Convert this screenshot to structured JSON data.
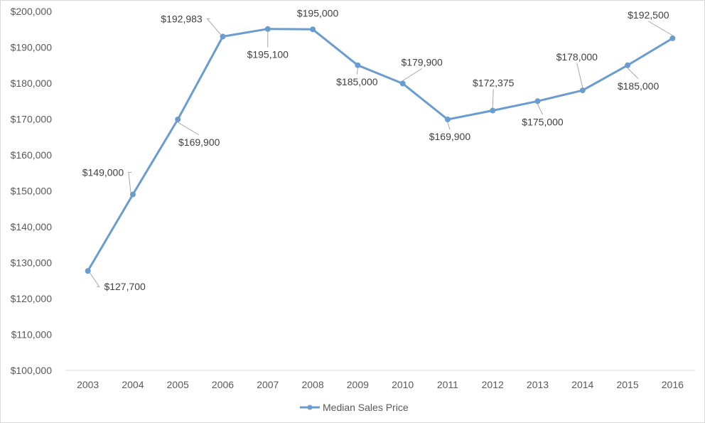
{
  "chart_data": {
    "type": "line",
    "title": "",
    "xlabel": "",
    "ylabel": "",
    "categories": [
      "2003",
      "2004",
      "2005",
      "2006",
      "2007",
      "2008",
      "2009",
      "2010",
      "2011",
      "2012",
      "2013",
      "2014",
      "2015",
      "2016"
    ],
    "series": [
      {
        "name": "Median Sales Price",
        "values": [
          127700,
          149000,
          169900,
          192983,
          195100,
          195000,
          185000,
          179900,
          169900,
          172375,
          175000,
          178000,
          185000,
          192500
        ],
        "data_labels": [
          "$127,700",
          "$149,000",
          "$169,900",
          "$192,983",
          "$195,100",
          "$195,000",
          "$185,000",
          "$179,900",
          "$169,900",
          "$172,375",
          "$175,000",
          "$178,000",
          "$185,000",
          "$192,500"
        ],
        "color": "#6a9ccf"
      }
    ],
    "ylim": [
      100000,
      200000
    ],
    "yticks": [
      100000,
      110000,
      120000,
      130000,
      140000,
      150000,
      160000,
      170000,
      180000,
      190000,
      200000
    ],
    "ytick_labels": [
      "$100,000",
      "$110,000",
      "$120,000",
      "$130,000",
      "$140,000",
      "$150,000",
      "$160,000",
      "$170,000",
      "$180,000",
      "$190,000",
      "$200,000"
    ],
    "grid": false,
    "legend_position": "bottom"
  }
}
